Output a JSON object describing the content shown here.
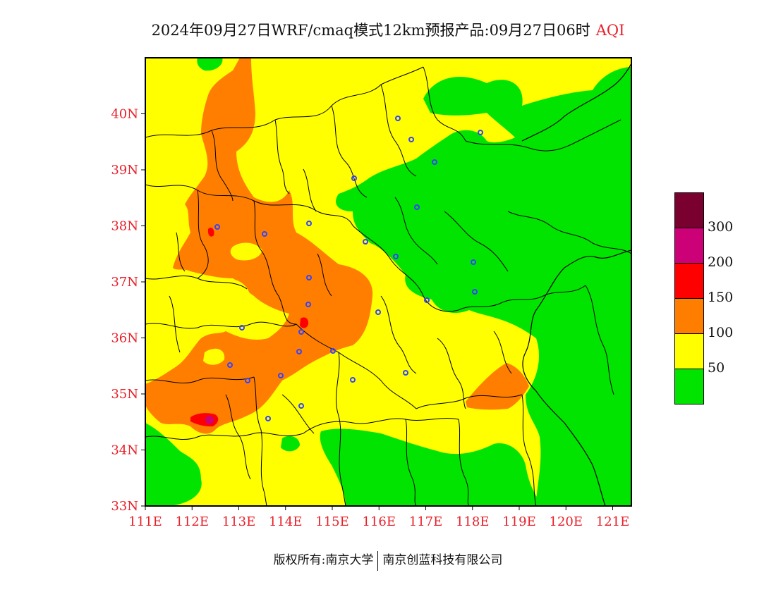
{
  "title": {
    "main": "2024年09月27日WRF/cmaq模式12km预报产品:09月27日06时",
    "variable": "AQI"
  },
  "axes": {
    "lat_labels": [
      "33N",
      "34N",
      "35N",
      "36N",
      "37N",
      "38N",
      "39N",
      "40N"
    ],
    "lon_labels": [
      "111E",
      "112E",
      "113E",
      "114E",
      "115E",
      "116E",
      "117E",
      "118E",
      "119E",
      "120E",
      "121E"
    ],
    "lat_range": [
      33,
      41
    ],
    "lon_range": [
      111,
      121.4
    ]
  },
  "legend": {
    "levels": [
      {
        "label": "300",
        "color": "#7a0030"
      },
      {
        "label": "200",
        "color": "#cc0077"
      },
      {
        "label": "150",
        "color": "#ff0000"
      },
      {
        "label": "100",
        "color": "#ff7e00"
      },
      {
        "label": "50",
        "color": "#ffff00"
      },
      {
        "label": "",
        "color": "#00e400"
      }
    ]
  },
  "footer": {
    "left": "版权所有:南京大学",
    "right": "南京创蓝科技有限公司"
  },
  "colors": {
    "good": "#00e400",
    "moderate": "#ffff00",
    "unhealthy_sensitive": "#ff7e00",
    "unhealthy": "#ff0000",
    "very_unhealthy": "#cc0077",
    "hazardous": "#7a0030",
    "station_marker": "#3344ff"
  }
}
